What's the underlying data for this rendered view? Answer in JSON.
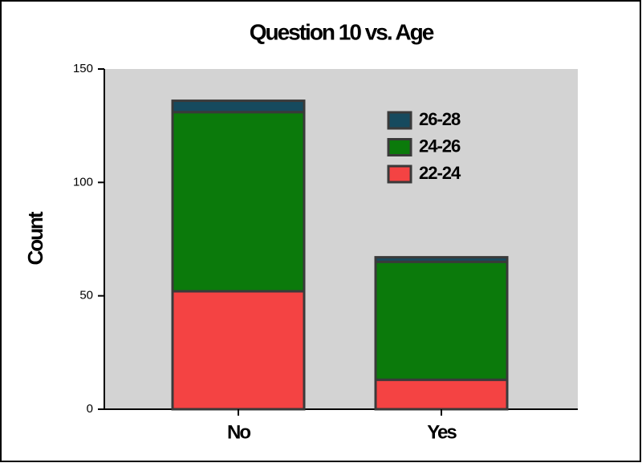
{
  "chart_data": {
    "type": "stacked_bar",
    "title": "Question 10 vs. Age",
    "y_label": "Count",
    "categories": [
      "No",
      "Yes"
    ],
    "series": [
      {
        "name": "22-24",
        "color": "#f44343",
        "values": [
          52,
          13
        ]
      },
      {
        "name": "24-26",
        "color": "#0b7a0b",
        "values": [
          79,
          52
        ]
      },
      {
        "name": "26-28",
        "color": "#164a5e",
        "values": [
          5,
          2
        ]
      }
    ],
    "ylim": [
      0,
      150
    ],
    "yticks": [
      0,
      50,
      100,
      150
    ],
    "grid": false,
    "legend": "upper right"
  }
}
